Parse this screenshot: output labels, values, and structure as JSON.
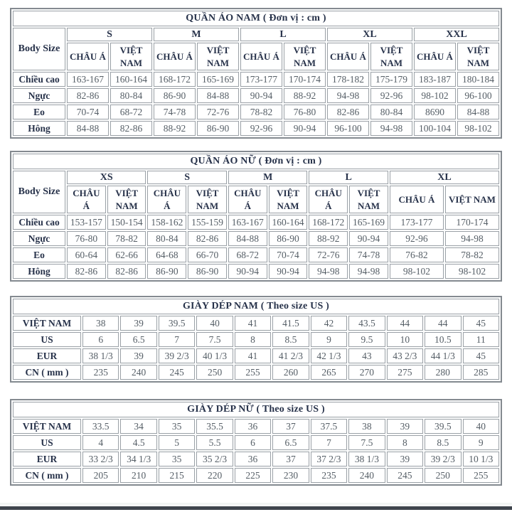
{
  "colors": {
    "heading_text": "#27324a",
    "value_text": "#555e66",
    "cell_border": "#9ba1a7",
    "outer_border": "#848a90",
    "bottom_bar": "#3f454d",
    "background": "#ffffff"
  },
  "tables": [
    {
      "id": "men-clothing",
      "title": "QUẦN ÁO NAM ( Đơn vị : cm )",
      "corner_label": "Body Size",
      "size_groups": [
        "S",
        "M",
        "L",
        "XL",
        "XXL"
      ],
      "sub_headers": [
        "CHÂU Á",
        "VIỆT NAM"
      ],
      "rows": [
        {
          "label": "Chiều cao",
          "values": [
            "163-167",
            "160-164",
            "168-172",
            "165-169",
            "173-177",
            "170-174",
            "178-182",
            "175-179",
            "183-187",
            "180-184"
          ]
        },
        {
          "label": "Ngực",
          "values": [
            "82-86",
            "80-84",
            "86-90",
            "84-88",
            "90-94",
            "88-92",
            "94-98",
            "92-96",
            "98-102",
            "96-100"
          ]
        },
        {
          "label": "Eo",
          "values": [
            "70-74",
            "68-72",
            "74-78",
            "72-76",
            "78-82",
            "76-80",
            "82-86",
            "80-84",
            "8690",
            "84-88"
          ]
        },
        {
          "label": "Hông",
          "values": [
            "84-88",
            "82-86",
            "88-92",
            "86-90",
            "92-96",
            "90-94",
            "96-100",
            "94-98",
            "100-104",
            "98-102"
          ]
        }
      ]
    },
    {
      "id": "women-clothing",
      "title": "QUẦN ÁO NỮ ( Đơn vị : cm )",
      "corner_label": "Body Size",
      "size_groups": [
        "XS",
        "S",
        "M",
        "L",
        "XL"
      ],
      "sub_headers": [
        "CHÂU Á",
        "VIỆT NAM"
      ],
      "rows": [
        {
          "label": "Chiều cao",
          "values": [
            "153-157",
            "150-154",
            "158-162",
            "155-159",
            "163-167",
            "160-164",
            "168-172",
            "165-169",
            "173-177",
            "170-174"
          ]
        },
        {
          "label": "Ngực",
          "values": [
            "76-80",
            "78-82",
            "80-84",
            "82-86",
            "84-88",
            "86-90",
            "88-92",
            "90-94",
            "92-96",
            "94-98"
          ]
        },
        {
          "label": "Eo",
          "values": [
            "60-64",
            "62-66",
            "64-68",
            "66-70",
            "68-72",
            "70-74",
            "72-76",
            "74-78",
            "76-82",
            "78-82"
          ]
        },
        {
          "label": "Hông",
          "values": [
            "82-86",
            "82-86",
            "86-90",
            "86-90",
            "90-94",
            "90-94",
            "94-98",
            "94-98",
            "98-102",
            "98-102"
          ]
        }
      ]
    },
    {
      "id": "men-shoes",
      "title": "GIÀY DÉP NAM ( Theo size US )",
      "rows": [
        {
          "label": "VIỆT NAM",
          "values": [
            "38",
            "39",
            "39.5",
            "40",
            "41",
            "41.5",
            "42",
            "43.5",
            "44",
            "44",
            "45"
          ]
        },
        {
          "label": "US",
          "values": [
            "6",
            "6.5",
            "7",
            "7.5",
            "8",
            "8.5",
            "9",
            "9.5",
            "10",
            "10.5",
            "11"
          ]
        },
        {
          "label": "EUR",
          "values": [
            "38 1/3",
            "39",
            "39 2/3",
            "40 1/3",
            "41",
            "41 2/3",
            "42 1/3",
            "43",
            "43 2/3",
            "44 1/3",
            "45"
          ]
        },
        {
          "label": "CN ( mm )",
          "values": [
            "235",
            "240",
            "245",
            "250",
            "255",
            "260",
            "265",
            "270",
            "275",
            "280",
            "285"
          ]
        }
      ]
    },
    {
      "id": "women-shoes",
      "title": "GIÀY DÉP NỮ ( Theo size US )",
      "rows": [
        {
          "label": "VIỆT NAM",
          "values": [
            "33.5",
            "34",
            "35",
            "35.5",
            "36",
            "37",
            "37.5",
            "38",
            "39",
            "39.5",
            "40"
          ]
        },
        {
          "label": "US",
          "values": [
            "4",
            "4.5",
            "5",
            "5.5",
            "6",
            "6.5",
            "7",
            "7.5",
            "8",
            "8.5",
            "9"
          ]
        },
        {
          "label": "EUR",
          "values": [
            "33 2/3",
            "34 1/3",
            "35",
            "35 2/3",
            "36",
            "37",
            "37 2/3",
            "38 1/3",
            "39",
            "39 2/3",
            "10 1/3"
          ]
        },
        {
          "label": "CN ( mm )",
          "values": [
            "205",
            "210",
            "215",
            "220",
            "225",
            "230",
            "235",
            "240",
            "245",
            "250",
            "255"
          ]
        }
      ]
    }
  ]
}
